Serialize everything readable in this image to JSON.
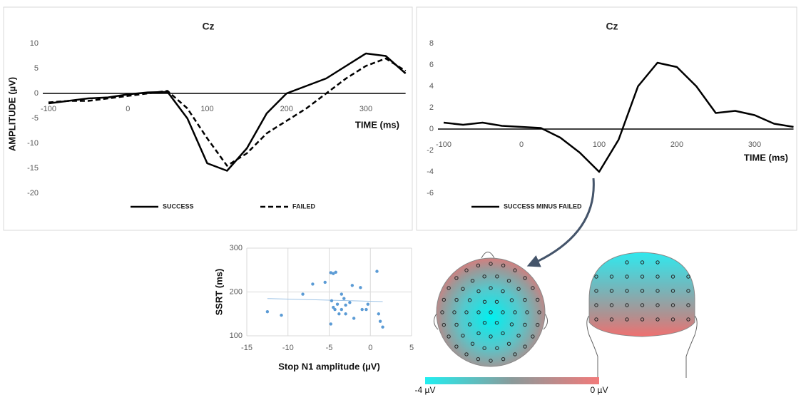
{
  "chart_data": [
    {
      "type": "line",
      "title": "Cz",
      "ylabel": "AMPLITUDE (µV)",
      "xlabel": "TIME (ms)",
      "x": [
        -100,
        -75,
        -50,
        -25,
        0,
        25,
        50,
        75,
        100,
        125,
        150,
        175,
        200,
        225,
        250,
        275,
        300,
        325,
        350
      ],
      "series": [
        {
          "name": "SUCCESS",
          "color": "#000000",
          "line_style": "solid",
          "values": [
            -2,
            -1.5,
            -1,
            -0.8,
            -0.2,
            0.2,
            0.3,
            -5,
            -14,
            -15.5,
            -11,
            -4,
            0,
            1.5,
            3,
            5.5,
            8,
            7.5,
            4
          ]
        },
        {
          "name": "FAILED",
          "color": "#000000",
          "line_style": "dashed",
          "values": [
            -1.8,
            -1.5,
            -1.5,
            -1,
            -0.5,
            0,
            0.5,
            -3,
            -9,
            -14.5,
            -12,
            -8,
            -5.5,
            -3,
            0,
            3,
            5.5,
            7,
            4.5
          ]
        }
      ],
      "xlim": [
        -100,
        350
      ],
      "xticks": [
        -100,
        0,
        100,
        200,
        300
      ],
      "ylim": [
        -20,
        10
      ],
      "yticks": [
        -20,
        -15,
        -10,
        -5,
        0,
        5,
        10
      ]
    },
    {
      "type": "line",
      "title": "Cz",
      "xlabel": "TIME (ms)",
      "x": [
        -100,
        -75,
        -50,
        -25,
        0,
        25,
        50,
        75,
        100,
        125,
        150,
        175,
        200,
        225,
        250,
        275,
        300,
        325,
        350
      ],
      "series": [
        {
          "name": "SUCCESS MINUS FAILED",
          "color": "#000000",
          "line_style": "solid",
          "values": [
            0.6,
            0.4,
            0.6,
            0.3,
            0.2,
            0.1,
            -0.8,
            -2.2,
            -4,
            -1,
            4,
            6.2,
            5.8,
            4,
            1.5,
            1.7,
            1.3,
            0.5,
            0.2
          ]
        }
      ],
      "xlim": [
        -100,
        350
      ],
      "xticks": [
        -100,
        0,
        100,
        200,
        300
      ],
      "ylim": [
        -6,
        8
      ],
      "yticks": [
        -6,
        -4,
        -2,
        0,
        2,
        4,
        6,
        8
      ]
    },
    {
      "type": "scatter",
      "xlabel": "Stop N1 amplitude (µV)",
      "ylabel": "SSRT (ms)",
      "color": "#5b9bd5",
      "grid": true,
      "x": [
        -12.5,
        -10.8,
        -8.2,
        -7,
        -5.5,
        -4.8,
        -4.5,
        -4.2,
        -4.7,
        -4.5,
        -4.3,
        -4,
        -4.8,
        -3.8,
        -3.5,
        -3.5,
        -3.2,
        -3,
        -3,
        -2.5,
        -2.2,
        -2,
        -1.2,
        -1,
        -0.5,
        -0.3,
        0.8,
        1,
        1.2,
        1.5
      ],
      "y": [
        155,
        147,
        195,
        218,
        222,
        244,
        242,
        245,
        180,
        165,
        160,
        172,
        127,
        150,
        160,
        195,
        185,
        150,
        170,
        176,
        215,
        140,
        210,
        160,
        160,
        172,
        247,
        150,
        133,
        120
      ],
      "trendline": {
        "color": "#9dc3e6",
        "x": [
          -12.5,
          1.5
        ],
        "y": [
          185,
          178
        ]
      },
      "xlim": [
        -15,
        5
      ],
      "xticks": [
        -15,
        -10,
        -5,
        0,
        5
      ],
      "ylim": [
        100,
        300
      ],
      "yticks": [
        100,
        200,
        300
      ]
    }
  ],
  "topography": {
    "colorbar_labels": [
      "-4 µV",
      "0 µV"
    ]
  }
}
